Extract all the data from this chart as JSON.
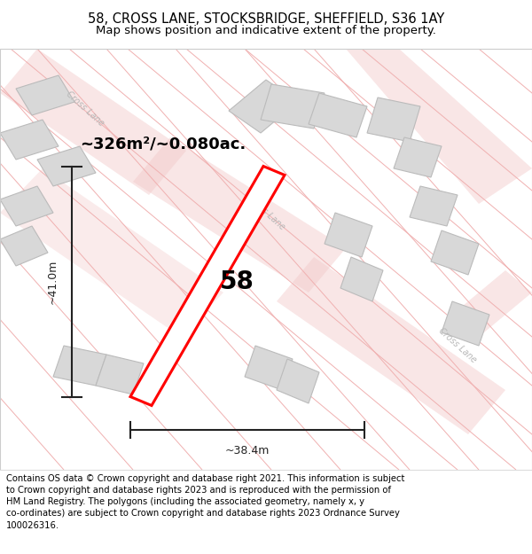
{
  "title_line1": "58, CROSS LANE, STOCKSBRIDGE, SHEFFIELD, S36 1AY",
  "title_line2": "Map shows position and indicative extent of the property.",
  "footer_text": "Contains OS data © Crown copyright and database right 2021. This information is subject to Crown copyright and database rights 2023 and is reproduced with the permission of HM Land Registry. The polygons (including the associated geometry, namely x, y co-ordinates) are subject to Crown copyright and database rights 2023 Ordnance Survey 100026316.",
  "area_label": "~326m²/~0.080ac.",
  "width_label": "~38.4m",
  "height_label": "~41.0m",
  "property_number": "58",
  "map_bg_color": "#faf6f6",
  "building_color": "#d8d8d8",
  "building_edge_color": "#bbbbbb",
  "property_color": "#ffffff",
  "property_edge_color": "#ff0000",
  "road_label_color": "#b8b8b8",
  "road_line_color": "#f0b0b0",
  "dimension_color": "#222222",
  "title_fontsize": 10.5,
  "subtitle_fontsize": 9.5,
  "footer_fontsize": 7.2,
  "area_fontsize": 13,
  "number_fontsize": 20
}
